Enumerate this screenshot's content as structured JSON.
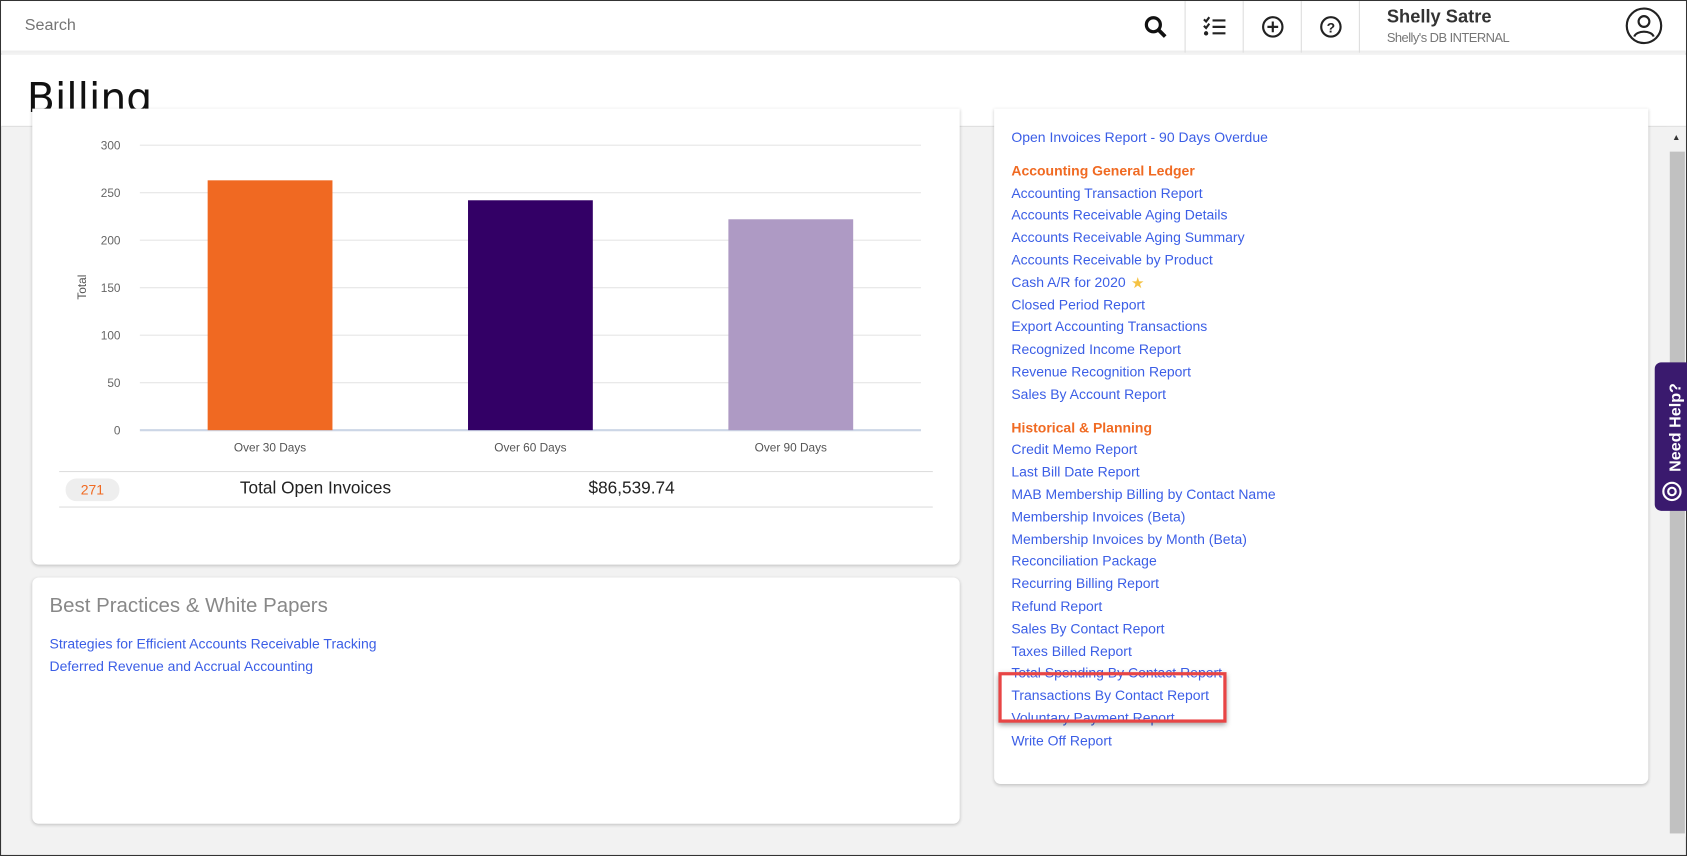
{
  "topbar": {
    "search_placeholder": "Search",
    "user_name": "Shelly Satre",
    "user_db": "Shelly's DB INTERNAL"
  },
  "page_title": "Billing",
  "chart_data": {
    "type": "bar",
    "categories": [
      "Over 30 Days",
      "Over 60 Days",
      "Over 90 Days"
    ],
    "values": [
      263,
      242,
      222
    ],
    "ylabel": "Total",
    "ylim": [
      0,
      300
    ],
    "yticks": [
      0,
      50,
      100,
      150,
      200,
      250,
      300
    ],
    "colors": [
      "#f06922",
      "#330066",
      "#ae9ac4"
    ],
    "grid": true
  },
  "summary": {
    "count": "271",
    "label": "Total Open Invoices",
    "amount": "$86,539.74"
  },
  "best_practices": {
    "title": "Best Practices & White Papers",
    "links": [
      "Strategies for Efficient Accounts Receivable Tracking",
      "Deferred Revenue and Accrual Accounting"
    ]
  },
  "reports": {
    "top_link": "Open Invoices Report - 90 Days Overdue",
    "sections": [
      {
        "title": "Accounting General Ledger",
        "links": [
          "Accounting Transaction Report",
          "Accounts Receivable Aging Details",
          "Accounts Receivable Aging Summary",
          "Accounts Receivable by Product",
          "Cash A/R for 2020",
          "Closed Period Report",
          "Export Accounting Transactions",
          "Recognized Income Report",
          "Revenue Recognition Report",
          "Sales By Account Report"
        ]
      },
      {
        "title": "Historical & Planning",
        "links": [
          "Credit Memo Report",
          "Last Bill Date Report",
          "MAB Membership Billing by Contact Name",
          "Membership Invoices (Beta)",
          "Membership Invoices by Month (Beta)",
          "Reconciliation Package",
          "Recurring Billing Report",
          "Refund Report",
          "Sales By Contact Report",
          "Taxes Billed Report",
          "Total Spending By Contact Report",
          "Transactions By Contact Report",
          "Voluntary Payment Report",
          "Write Off Report"
        ]
      }
    ]
  },
  "need_help": "Need Help?"
}
